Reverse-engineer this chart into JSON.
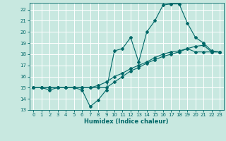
{
  "title": "",
  "xlabel": "Humidex (Indice chaleur)",
  "ylabel": "",
  "background_color": "#c8e8e0",
  "line_color": "#006868",
  "xlim": [
    -0.5,
    23.5
  ],
  "ylim": [
    13,
    22.6
  ],
  "yticks": [
    13,
    14,
    15,
    16,
    17,
    18,
    19,
    20,
    21,
    22
  ],
  "xticks": [
    0,
    1,
    2,
    3,
    4,
    5,
    6,
    7,
    8,
    9,
    10,
    11,
    12,
    13,
    14,
    15,
    16,
    17,
    18,
    19,
    20,
    21,
    22,
    23
  ],
  "series": [
    {
      "x": [
        0,
        1,
        2,
        3,
        4,
        5,
        6,
        7,
        8,
        9,
        10,
        11,
        12,
        13,
        14,
        15,
        16,
        17,
        18,
        19,
        20,
        21,
        22,
        23
      ],
      "y": [
        15,
        15,
        14.8,
        15,
        15,
        15,
        14.8,
        13.3,
        13.9,
        14.8,
        18.3,
        18.5,
        19.5,
        17.3,
        20.0,
        21.0,
        22.4,
        22.5,
        22.5,
        20.8,
        19.5,
        19.0,
        18.3,
        18.2
      ]
    },
    {
      "x": [
        0,
        1,
        2,
        3,
        4,
        5,
        6,
        7,
        8,
        9,
        10,
        11,
        12,
        13,
        14,
        15,
        16,
        17,
        18,
        19,
        20,
        21,
        22,
        23
      ],
      "y": [
        15,
        15,
        15,
        15,
        15,
        15,
        15,
        15,
        15,
        15,
        15.5,
        16.0,
        16.5,
        16.8,
        17.2,
        17.5,
        17.8,
        18.0,
        18.2,
        18.5,
        18.7,
        18.8,
        18.2,
        18.2
      ]
    },
    {
      "x": [
        0,
        1,
        2,
        3,
        4,
        5,
        6,
        7,
        8,
        9,
        10,
        11,
        12,
        13,
        14,
        15,
        16,
        17,
        18,
        19,
        20,
        21,
        22,
        23
      ],
      "y": [
        15,
        15,
        15,
        15,
        15,
        15,
        15,
        15,
        15.2,
        15.5,
        16.0,
        16.3,
        16.7,
        17.0,
        17.3,
        17.7,
        18.0,
        18.2,
        18.3,
        18.5,
        18.2,
        18.2,
        18.2,
        18.2
      ]
    }
  ]
}
